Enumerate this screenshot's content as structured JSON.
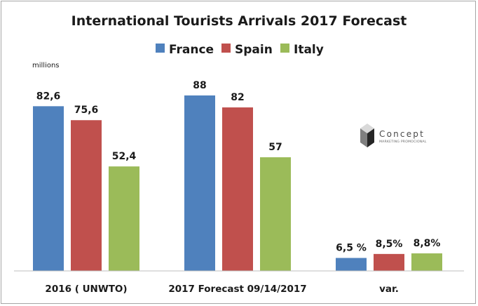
{
  "chart_data": {
    "type": "bar",
    "title": "International Tourists Arrivals 2017 Forecast",
    "unit_label": "millions",
    "categories": [
      "2016 ( UNWTO)",
      "2017 Forecast 09/14/2017",
      "var."
    ],
    "series": [
      {
        "name": "France",
        "color": "#4f81bd",
        "values": [
          82.6,
          88,
          6.5
        ],
        "labels": [
          "82,6",
          "88",
          "6,5 %"
        ]
      },
      {
        "name": "Spain",
        "color": "#c0504d",
        "values": [
          75.6,
          82,
          8.5
        ],
        "labels": [
          "75,6",
          "82",
          "8,5%"
        ]
      },
      {
        "name": "Italy",
        "color": "#9bbb59",
        "values": [
          52.4,
          57,
          8.8
        ],
        "labels": [
          "52,4",
          "57",
          "8,8%"
        ]
      }
    ],
    "ylim": [
      0,
      88
    ],
    "grid": false,
    "legend_position": "top"
  },
  "logo": {
    "name": "Concept",
    "tagline": "MARKETING PROMOCIONAL"
  }
}
